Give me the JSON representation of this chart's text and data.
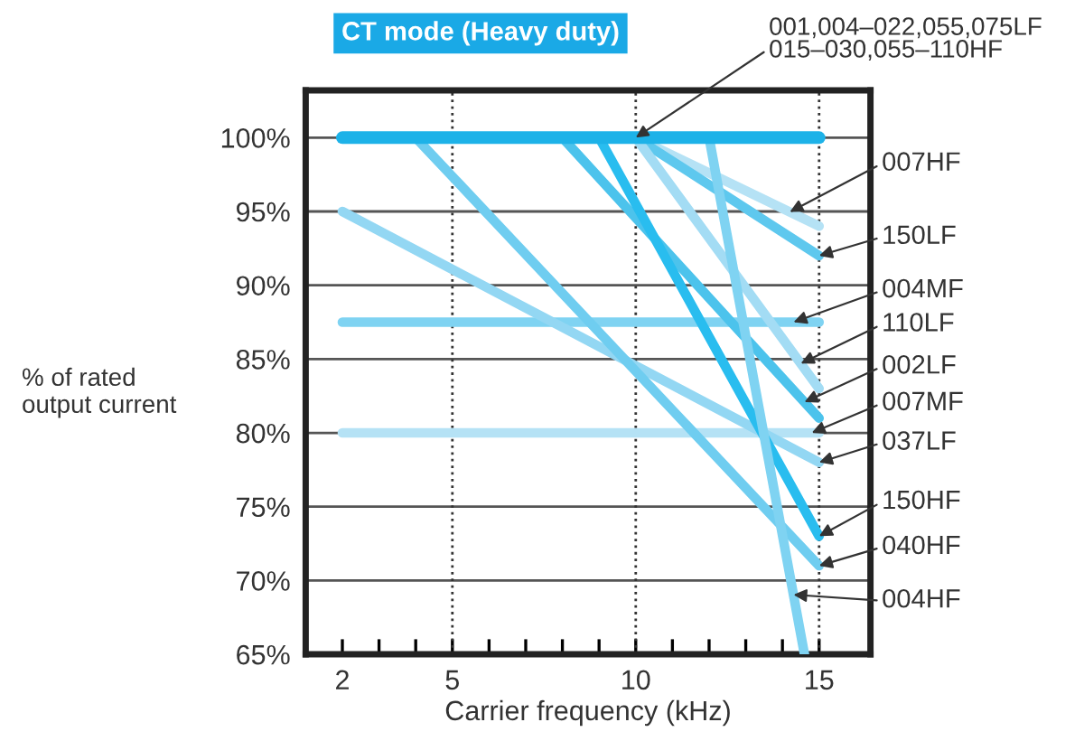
{
  "chart_data": {
    "type": "line",
    "title": "CT mode (Heavy duty)",
    "xlabel": "Carrier frequency (kHz)",
    "ylabel": "% of rated\noutput current",
    "xlim": [
      1,
      16.4
    ],
    "ylim": [
      65,
      103.2
    ],
    "xticks": [
      {
        "value": 2,
        "label": "2"
      },
      {
        "value": 3,
        "label": null
      },
      {
        "value": 4,
        "label": null
      },
      {
        "value": 5,
        "label": "5"
      },
      {
        "value": 6,
        "label": null
      },
      {
        "value": 7,
        "label": null
      },
      {
        "value": 8,
        "label": null
      },
      {
        "value": 9,
        "label": null
      },
      {
        "value": 10,
        "label": "10"
      },
      {
        "value": 11,
        "label": null
      },
      {
        "value": 12,
        "label": null
      },
      {
        "value": 13,
        "label": null
      },
      {
        "value": 14,
        "label": null
      },
      {
        "value": 15,
        "label": "15"
      }
    ],
    "yticks": [
      {
        "value": 65,
        "label": "65%"
      },
      {
        "value": 70,
        "label": "70%"
      },
      {
        "value": 75,
        "label": "75%"
      },
      {
        "value": 80,
        "label": "80%"
      },
      {
        "value": 85,
        "label": "85%"
      },
      {
        "value": 90,
        "label": "90%"
      },
      {
        "value": 95,
        "label": "95%"
      },
      {
        "value": 100,
        "label": "100%"
      }
    ],
    "grid": "y",
    "marker": "none",
    "line_style": "solid",
    "ref_lines": [
      {
        "axis": "x",
        "value": 5,
        "line_style": "dotted",
        "color": "#333333"
      },
      {
        "axis": "x",
        "value": 10,
        "line_style": "dotted",
        "color": "#333333"
      },
      {
        "axis": "x",
        "value": 15,
        "line_style": "dotted",
        "color": "#333333"
      }
    ],
    "series": [
      {
        "name": "001,004–022,055,075LF\n015–030,055–110HF",
        "color": "#1db2e8",
        "x": [
          2,
          15
        ],
        "values": [
          100,
          100
        ]
      },
      {
        "name": "007HF",
        "color": "#b5e2f5",
        "x": [
          10,
          15
        ],
        "values": [
          100,
          94
        ]
      },
      {
        "name": "150LF",
        "color": "#5ec8ee",
        "x": [
          10,
          15
        ],
        "values": [
          100,
          92
        ]
      },
      {
        "name": "004MF",
        "color": "#7fd3f2",
        "x": [
          2,
          15
        ],
        "values": [
          87.5,
          87.5
        ]
      },
      {
        "name": "110LF",
        "color": "#a3dcf4",
        "x": [
          10,
          15
        ],
        "values": [
          100,
          83
        ]
      },
      {
        "name": "002LF",
        "color": "#4cc3ec",
        "x": [
          8,
          15
        ],
        "values": [
          100,
          81
        ]
      },
      {
        "name": "007MF",
        "color": "#b5e2f5",
        "x": [
          2,
          15
        ],
        "values": [
          80,
          80
        ]
      },
      {
        "name": "037LF",
        "color": "#93d7f3",
        "x": [
          2,
          15
        ],
        "values": [
          95,
          78
        ]
      },
      {
        "name": "150HF",
        "color": "#29bdef",
        "x": [
          9,
          15
        ],
        "values": [
          100,
          73
        ]
      },
      {
        "name": "040HF",
        "color": "#6fcdf0",
        "x": [
          4,
          15
        ],
        "values": [
          100,
          71
        ]
      },
      {
        "name": "004HF",
        "color": "#7fd3f2",
        "x": [
          12,
          14.6
        ],
        "values": [
          100,
          65
        ]
      }
    ]
  }
}
